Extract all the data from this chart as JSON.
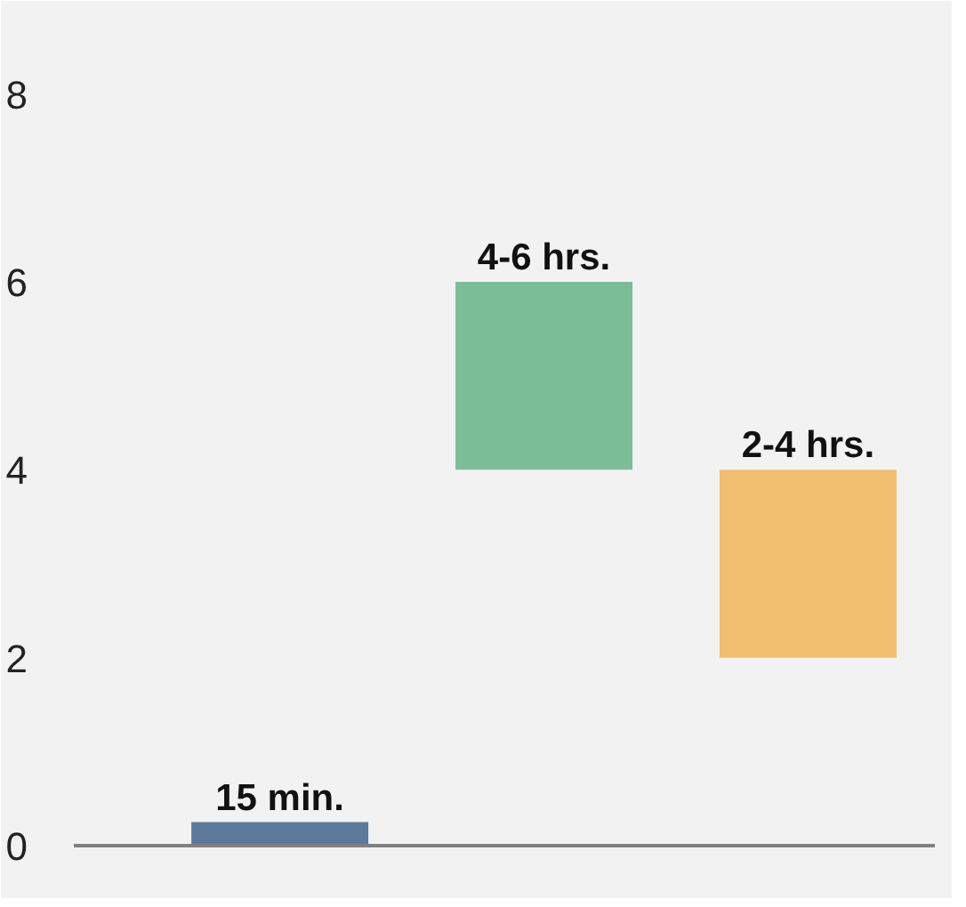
{
  "chart_data": {
    "type": "bar",
    "categories": [
      null,
      null,
      null
    ],
    "base": [
      0,
      4,
      2
    ],
    "values": [
      0.25,
      2,
      2
    ],
    "colors": [
      "#5b7a9c",
      "#7bbd96",
      "#f2bf70"
    ],
    "annotations": [
      {
        "text": "15 min.",
        "y": 0.25
      },
      {
        "text": "4-6 hrs.",
        "y": 6
      },
      {
        "text": "2-4 hrs.",
        "y": 4
      }
    ],
    "ylim": [
      0,
      8.8
    ],
    "yticks": [
      0,
      2,
      4,
      6,
      8
    ],
    "grid": false,
    "tick_labels": "y"
  }
}
